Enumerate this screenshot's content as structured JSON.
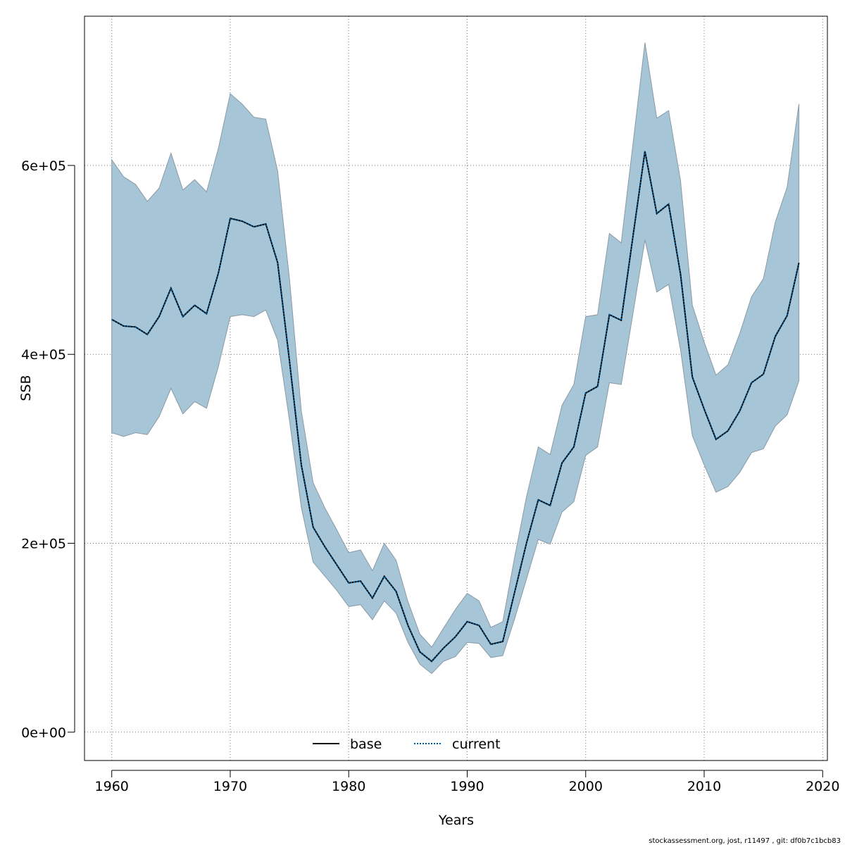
{
  "chart_data": {
    "type": "area",
    "title": "",
    "xlabel": "Years",
    "ylabel": "SSB",
    "xlim": [
      1957.7,
      2020.4
    ],
    "ylim": [
      -30000,
      758000
    ],
    "xticks": [
      1960,
      1970,
      1980,
      1990,
      2000,
      2010,
      2020
    ],
    "xtick_labels": [
      "1960",
      "1970",
      "1980",
      "1990",
      "2000",
      "2010",
      "2020"
    ],
    "yticks": [
      0,
      200000,
      400000,
      600000
    ],
    "ytick_labels": [
      "0e+00",
      "2e+05",
      "4e+05",
      "6e+05"
    ],
    "grid": true,
    "legend_placement": "bottom-center",
    "band_color": "#a6c5d6",
    "band_edge_color": "#8a9aa6",
    "x": [
      1960,
      1961,
      1962,
      1963,
      1964,
      1965,
      1966,
      1967,
      1968,
      1969,
      1970,
      1971,
      1972,
      1973,
      1974,
      1975,
      1976,
      1977,
      1978,
      1979,
      1980,
      1981,
      1982,
      1983,
      1984,
      1985,
      1986,
      1987,
      1988,
      1989,
      1990,
      1991,
      1992,
      1993,
      1994,
      1995,
      1996,
      1997,
      1998,
      1999,
      2000,
      2001,
      2002,
      2003,
      2004,
      2005,
      2006,
      2007,
      2008,
      2009,
      2010,
      2011,
      2012,
      2013,
      2014,
      2015,
      2016,
      2017,
      2018
    ],
    "band": {
      "upper": [
        606000,
        588000,
        580000,
        562000,
        576000,
        613000,
        574000,
        585000,
        572000,
        618000,
        676000,
        665000,
        651000,
        649000,
        594000,
        480000,
        340000,
        264000,
        237000,
        214000,
        190000,
        193000,
        171000,
        200000,
        182000,
        138000,
        104000,
        90000,
        110000,
        130000,
        147000,
        139000,
        111000,
        117000,
        185000,
        249000,
        302000,
        294000,
        346000,
        368000,
        440000,
        442000,
        528000,
        518000,
        624000,
        730000,
        650000,
        658000,
        584000,
        452000,
        413000,
        378000,
        389000,
        422000,
        461000,
        480000,
        540000,
        577000,
        665000
      ],
      "lower": [
        317000,
        313000,
        317000,
        315000,
        334000,
        364000,
        337000,
        350000,
        343000,
        387000,
        440000,
        442000,
        440000,
        447000,
        415000,
        330000,
        238000,
        180000,
        165000,
        150000,
        133000,
        135000,
        119000,
        139000,
        126000,
        95000,
        72000,
        62000,
        75000,
        80000,
        95000,
        94000,
        79000,
        81000,
        120000,
        162000,
        204000,
        199000,
        233000,
        244000,
        293000,
        302000,
        370000,
        368000,
        444000,
        521000,
        466000,
        474000,
        405000,
        314000,
        283000,
        254000,
        260000,
        275000,
        296000,
        300000,
        324000,
        336000,
        372000
      ]
    },
    "series": [
      {
        "name": "base",
        "color": "#000000",
        "style": "solid",
        "values": [
          437000,
          430000,
          429000,
          421000,
          440000,
          470000,
          440000,
          452000,
          443000,
          486000,
          544000,
          541000,
          535000,
          538000,
          497000,
          393000,
          283000,
          217000,
          196000,
          177000,
          158000,
          160000,
          142000,
          165000,
          149000,
          113000,
          85000,
          75000,
          89000,
          101000,
          117000,
          113000,
          93000,
          96000,
          148000,
          200000,
          246000,
          240000,
          285000,
          302000,
          359000,
          366000,
          442000,
          436000,
          526000,
          615000,
          549000,
          559000,
          485000,
          376000,
          342000,
          310000,
          319000,
          340000,
          370000,
          379000,
          419000,
          441000,
          497000
        ]
      },
      {
        "name": "current",
        "color": "#005b96",
        "style": "dotted",
        "values": [
          437000,
          430000,
          429000,
          421000,
          440000,
          470000,
          440000,
          452000,
          443000,
          486000,
          544000,
          541000,
          535000,
          538000,
          497000,
          393000,
          283000,
          217000,
          196000,
          177000,
          158000,
          160000,
          142000,
          165000,
          149000,
          113000,
          85000,
          75000,
          89000,
          101000,
          117000,
          113000,
          93000,
          96000,
          148000,
          200000,
          246000,
          240000,
          285000,
          302000,
          359000,
          366000,
          442000,
          436000,
          526000,
          615000,
          549000,
          559000,
          485000,
          376000,
          342000,
          310000,
          319000,
          340000,
          370000,
          379000,
          419000,
          441000,
          497000
        ]
      }
    ]
  },
  "footer": {
    "text": "stockassessment.org, jost, r11497 , git: df0b7c1bcb83"
  }
}
